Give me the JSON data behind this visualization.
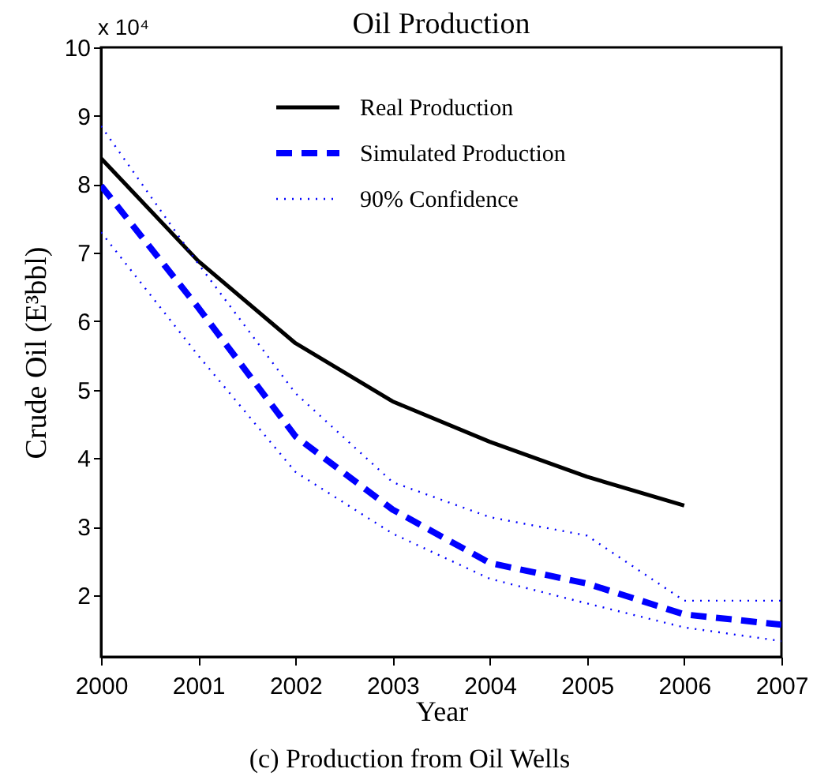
{
  "chart_data": {
    "type": "line",
    "title": "Oil Production",
    "xlabel": "Year",
    "ylabel": "Crude Oil (E³bbl)",
    "annotations": [
      "x 10⁴",
      "(c) Production from Oil Wells"
    ],
    "x": [
      2000,
      2001,
      2002,
      2003,
      2004,
      2005,
      2006,
      2007
    ],
    "series": [
      {
        "name": "Real Production",
        "color": "#000000",
        "line_style": "solid",
        "values": [
          8.38,
          6.88,
          5.68,
          4.83,
          4.24,
          3.73,
          3.31,
          null
        ]
      },
      {
        "name": "Simulated Production",
        "color": "#0000ff",
        "line_style": "dashed",
        "values": [
          7.98,
          6.2,
          4.32,
          3.25,
          2.47,
          2.17,
          1.72,
          1.57
        ]
      },
      {
        "name": "90% Confidence",
        "color": "#0000ff",
        "line_style": "dotted",
        "values": [
          8.85,
          6.84,
          4.95,
          3.65,
          3.14,
          2.87,
          1.92,
          1.92
        ]
      },
      {
        "color": "#0000ff",
        "line_style": "dotted",
        "values": [
          7.3,
          5.5,
          3.8,
          2.9,
          2.24,
          1.88,
          1.53,
          1.33
        ]
      }
    ],
    "xlim": [
      2000,
      2007
    ],
    "xticks": [
      2000,
      2001,
      2002,
      2003,
      2004,
      2005,
      2006,
      2007
    ],
    "ylim": [
      1.1,
      10
    ],
    "yticks": [
      2,
      3,
      4,
      5,
      6,
      7,
      8,
      9,
      10
    ],
    "grid": false,
    "legend": "top right"
  }
}
